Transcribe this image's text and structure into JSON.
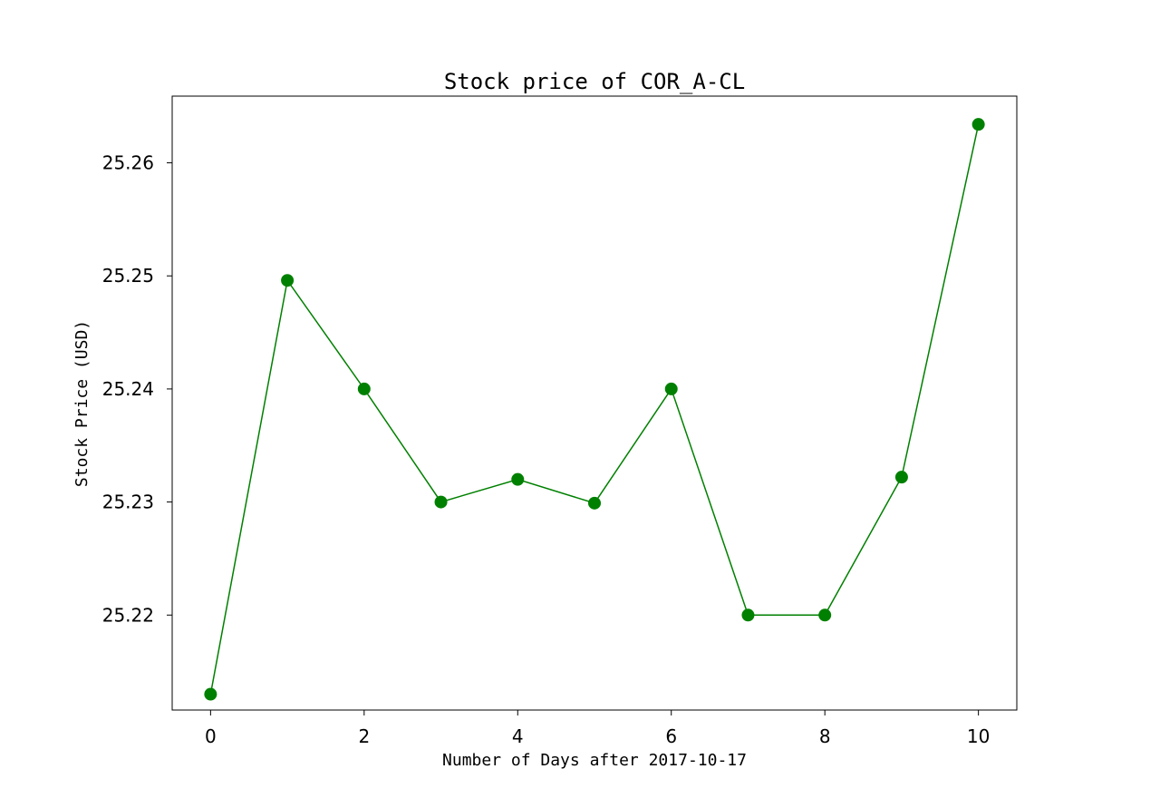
{
  "chart_data": {
    "type": "line",
    "title": "Stock price of COR_A-CL",
    "xlabel": "Number of Days after 2017-10-17",
    "ylabel": "Stock Price (USD)",
    "x": [
      0,
      1,
      2,
      3,
      4,
      5,
      6,
      7,
      8,
      9,
      10
    ],
    "series": [
      {
        "values": [
          25.213,
          25.2496,
          25.24,
          25.23,
          25.232,
          25.2299,
          25.24,
          25.22,
          25.22,
          25.2322,
          25.2634
        ]
      }
    ],
    "xlim": [
      -0.5,
      10.5
    ],
    "ylim": [
      25.2116,
      25.2659
    ],
    "xticks": [
      "0",
      "2",
      "4",
      "6",
      "8",
      "10"
    ],
    "yticks": [
      "25.22",
      "25.23",
      "25.24",
      "25.25",
      "25.26"
    ],
    "grid": false,
    "color": "#008000"
  }
}
